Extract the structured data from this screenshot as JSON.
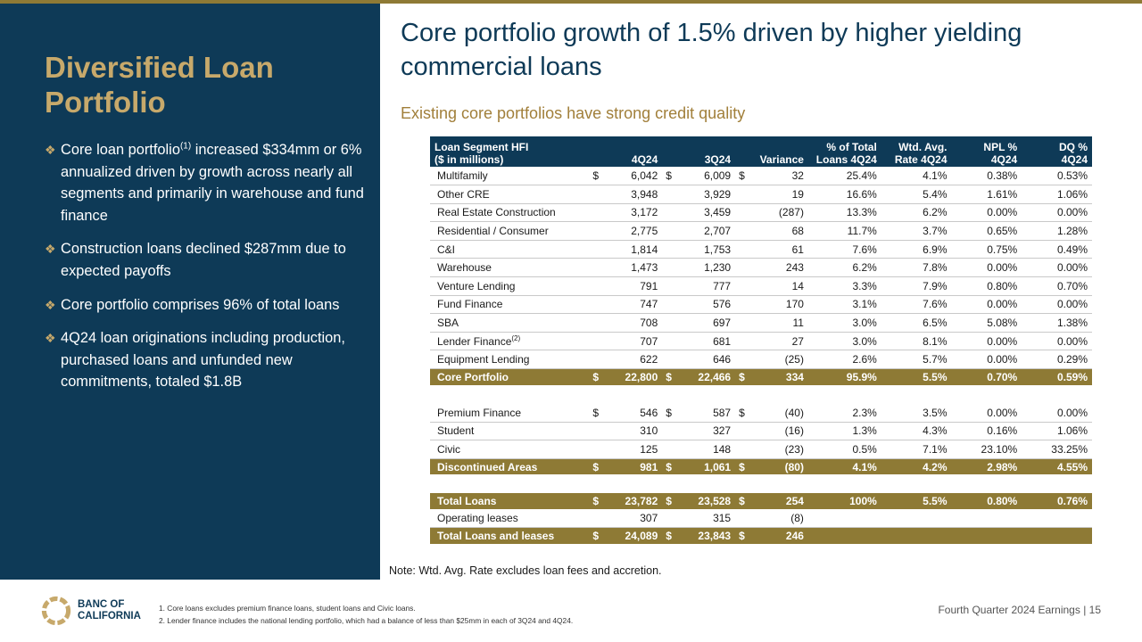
{
  "left": {
    "title": "Diversified Loan Portfolio",
    "bullets": [
      {
        "before": "Core loan portfolio",
        "sup": "(1)",
        "after": " increased $334mm or 6% annualized driven by growth across nearly all segments and primarily in warehouse and fund finance"
      },
      {
        "before": "Construction loans declined $287mm due to expected payoffs",
        "sup": "",
        "after": ""
      },
      {
        "before": "Core portfolio comprises 96% of total loans",
        "sup": "",
        "after": ""
      },
      {
        "before": "4Q24 loan originations including production, purchased loans and unfunded new commitments, totaled $1.8B",
        "sup": "",
        "after": ""
      }
    ]
  },
  "headline": "Core portfolio growth of 1.5% driven by higher yielding commercial loans",
  "subhead": "Existing core portfolios have strong credit quality",
  "table": {
    "header": {
      "segment_l1": "Loan Segment HFI",
      "segment_l2": "($ in millions)",
      "q4": "4Q24",
      "q3": "3Q24",
      "variance": "Variance",
      "pct_l1": "% of Total",
      "pct_l2": "Loans 4Q24",
      "rate_l1": "Wtd. Avg.",
      "rate_l2": "Rate 4Q24",
      "npl_l1": "NPL %",
      "npl_l2": "4Q24",
      "dq_l1": "DQ %",
      "dq_l2": "4Q24"
    },
    "rows": [
      {
        "label": "Multifamily",
        "s1": "$",
        "q4": "6,042",
        "s2": "$",
        "q3": "6,009",
        "s3": "$",
        "var": "32",
        "pct": "25.4%",
        "rate": "4.1%",
        "npl": "0.38%",
        "dq": "0.53%",
        "style": "row"
      },
      {
        "label": "Other CRE",
        "q4": "3,948",
        "q3": "3,929",
        "var": "19",
        "pct": "16.6%",
        "rate": "5.4%",
        "npl": "1.61%",
        "dq": "1.06%",
        "style": "row"
      },
      {
        "label": "Real Estate Construction",
        "q4": "3,172",
        "q3": "3,459",
        "var": "(287)",
        "pct": "13.3%",
        "rate": "6.2%",
        "npl": "0.00%",
        "dq": "0.00%",
        "style": "row"
      },
      {
        "label": "Residential / Consumer",
        "q4": "2,775",
        "q3": "2,707",
        "var": "68",
        "pct": "11.7%",
        "rate": "3.7%",
        "npl": "0.65%",
        "dq": "1.28%",
        "style": "row"
      },
      {
        "label": "C&I",
        "q4": "1,814",
        "q3": "1,753",
        "var": "61",
        "pct": "7.6%",
        "rate": "6.9%",
        "npl": "0.75%",
        "dq": "0.49%",
        "style": "row"
      },
      {
        "label": "Warehouse",
        "q4": "1,473",
        "q3": "1,230",
        "var": "243",
        "pct": "6.2%",
        "rate": "7.8%",
        "npl": "0.00%",
        "dq": "0.00%",
        "style": "row"
      },
      {
        "label": "Venture Lending",
        "q4": "791",
        "q3": "777",
        "var": "14",
        "pct": "3.3%",
        "rate": "7.9%",
        "npl": "0.80%",
        "dq": "0.70%",
        "style": "row"
      },
      {
        "label": "Fund Finance",
        "q4": "747",
        "q3": "576",
        "var": "170",
        "pct": "3.1%",
        "rate": "7.6%",
        "npl": "0.00%",
        "dq": "0.00%",
        "style": "row"
      },
      {
        "label": "SBA",
        "q4": "708",
        "q3": "697",
        "var": "11",
        "pct": "3.0%",
        "rate": "6.5%",
        "npl": "5.08%",
        "dq": "1.38%",
        "style": "row"
      },
      {
        "label": "Lender Finance",
        "sup": "(2)",
        "q4": "707",
        "q3": "681",
        "var": "27",
        "pct": "3.0%",
        "rate": "8.1%",
        "npl": "0.00%",
        "dq": "0.00%",
        "style": "row"
      },
      {
        "label": "Equipment Lending",
        "q4": "622",
        "q3": "646",
        "var": "(25)",
        "pct": "2.6%",
        "rate": "5.7%",
        "npl": "0.00%",
        "dq": "0.29%",
        "style": "row"
      },
      {
        "label": "Core Portfolio",
        "s1": "$",
        "q4": "22,800",
        "s2": "$",
        "q3": "22,466",
        "s3": "$",
        "var": "334",
        "pct": "95.9%",
        "rate": "5.5%",
        "npl": "0.70%",
        "dq": "0.59%",
        "style": "sub"
      },
      {
        "style": "gap"
      },
      {
        "label": "Premium Finance",
        "s1": "$",
        "q4": "546",
        "s2": "$",
        "q3": "587",
        "s3": "$",
        "var": "(40)",
        "pct": "2.3%",
        "rate": "3.5%",
        "npl": "0.00%",
        "dq": "0.00%",
        "style": "row"
      },
      {
        "label": "Student",
        "q4": "310",
        "q3": "327",
        "var": "(16)",
        "pct": "1.3%",
        "rate": "4.3%",
        "npl": "0.16%",
        "dq": "1.06%",
        "style": "row"
      },
      {
        "label": "Civic",
        "q4": "125",
        "q3": "148",
        "var": "(23)",
        "pct": "0.5%",
        "rate": "7.1%",
        "npl": "23.10%",
        "dq": "33.25%",
        "style": "row"
      },
      {
        "label": "Discontinued Areas",
        "s1": "$",
        "q4": "981",
        "s2": "$",
        "q3": "1,061",
        "s3": "$",
        "var": "(80)",
        "pct": "4.1%",
        "rate": "4.2%",
        "npl": "2.98%",
        "dq": "4.55%",
        "style": "sub"
      },
      {
        "style": "gap"
      },
      {
        "label": "Total Loans",
        "s1": "$",
        "q4": "23,782",
        "s2": "$",
        "q3": "23,528",
        "s3": "$",
        "var": "254",
        "pct": "100%",
        "rate": "5.5%",
        "npl": "0.80%",
        "dq": "0.76%",
        "style": "sub"
      },
      {
        "label": "Operating leases",
        "q4": "307",
        "q3": "315",
        "var": "(8)",
        "style": "row"
      },
      {
        "label": "Total Loans and leases",
        "s1": "$",
        "q4": "24,089",
        "s2": "$",
        "q3": "23,843",
        "s3": "$",
        "var": "246",
        "style": "sub"
      }
    ]
  },
  "note": "Note: Wtd. Avg. Rate excludes loan fees and accretion.",
  "footer": {
    "logo_line1": "BANC OF",
    "logo_line2": "CALIFORNIA",
    "footnote1": "1. Core loans excludes premium finance loans, student loans and Civic loans.",
    "footnote2": "2. Lender finance includes the national lending portfolio, which had a balance of less than $25mm in each of 3Q24 and 4Q24.",
    "right": "Fourth Quarter 2024 Earnings |  15"
  },
  "colors": {
    "navy": "#0e3a57",
    "gold": "#8e7a35",
    "gold_text": "#c7a96b"
  }
}
